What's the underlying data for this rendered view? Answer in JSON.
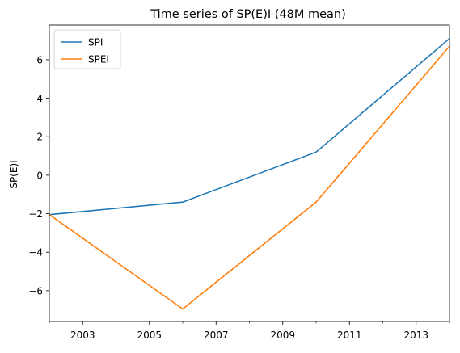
{
  "chart_data": {
    "type": "line",
    "title": "Time series of SP(E)I (48M mean)",
    "xlabel": "",
    "ylabel": "SP(E)I",
    "x": [
      2002,
      2006,
      2010,
      2014
    ],
    "xlim": [
      2002,
      2014
    ],
    "ylim": [
      -7.6,
      7.8
    ],
    "x_major_ticks": [
      2003,
      2005,
      2007,
      2009,
      2011,
      2013
    ],
    "x_minor_ticks": [
      2002,
      2004,
      2006,
      2008,
      2010,
      2012,
      2014
    ],
    "y_ticks": [
      -6,
      -4,
      -2,
      0,
      2,
      4,
      6
    ],
    "x_tick_labels": [
      "2003",
      "2005",
      "2007",
      "2009",
      "2011",
      "2013"
    ],
    "y_tick_labels": [
      "−6",
      "−4",
      "−2",
      "0",
      "2",
      "4",
      "6"
    ],
    "series": [
      {
        "name": "SPI",
        "color": "#1f77b4",
        "values": [
          -2.05,
          -1.4,
          1.2,
          7.1
        ]
      },
      {
        "name": "SPEI",
        "color": "#ff7f0e",
        "values": [
          -2.05,
          -6.95,
          -1.4,
          6.7
        ]
      }
    ],
    "legend": {
      "position": "top-left",
      "entries": [
        "SPI",
        "SPEI"
      ]
    },
    "grid": false
  }
}
